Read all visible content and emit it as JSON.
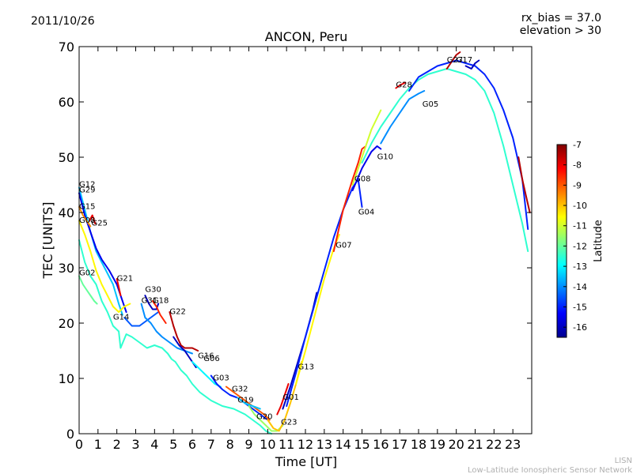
{
  "header": {
    "date": "2011/10/26",
    "title": "ANCON, Peru",
    "rx_bias": "rx_bias = 37.0",
    "elevation": "elevation > 30"
  },
  "footer": {
    "line1": "LISN",
    "line2": "Low-Latitude Ionospheric Sensor Network"
  },
  "colorbar": {
    "label": "Latitude",
    "min": -16.5,
    "max": -7,
    "ticks": [
      "-7",
      "-8",
      "-9",
      "-10",
      "-11",
      "-12",
      "-13",
      "-14",
      "-15",
      "-16"
    ],
    "tick_values": [
      -7,
      -8,
      -9,
      -10,
      -11,
      -12,
      -13,
      -14,
      -15,
      -16
    ],
    "colors": [
      "#00008f",
      "#0000ff",
      "#0080ff",
      "#00ffff",
      "#80ff80",
      "#ffff00",
      "#ff8000",
      "#ff0000",
      "#800000"
    ]
  },
  "chart_data": {
    "type": "line",
    "title": "ANCON, Peru",
    "xlabel": "Time [UT]",
    "ylabel": "TEC [UNITS]",
    "xlim": [
      0,
      24
    ],
    "ylim": [
      0,
      70
    ],
    "xticks": [
      "0",
      "1",
      "2",
      "3",
      "4",
      "5",
      "6",
      "7",
      "8",
      "9",
      "10",
      "11",
      "12",
      "13",
      "14",
      "15",
      "16",
      "17",
      "18",
      "19",
      "20",
      "21",
      "22",
      "23"
    ],
    "yticks": [
      "0",
      "10",
      "20",
      "30",
      "40",
      "50",
      "60",
      "70"
    ],
    "series": [
      {
        "name": "G12",
        "lat": -13.5,
        "x": [
          0.0,
          0.3,
          0.6,
          0.9,
          1.2,
          1.5,
          1.8,
          2.1,
          2.3
        ],
        "y": [
          44.5,
          40.5,
          36.5,
          33.0,
          31.0,
          29.0,
          27.0,
          23.5,
          21.5
        ]
      },
      {
        "name": "G29",
        "lat": -15.5,
        "x": [
          0.0,
          0.3,
          0.6,
          0.9,
          1.2,
          1.6,
          2.0,
          2.3,
          2.5
        ],
        "y": [
          43.5,
          39.5,
          36.5,
          33.5,
          31.5,
          29.5,
          27.0,
          24.0,
          22.0
        ]
      },
      {
        "name": "G15",
        "lat": -9.5,
        "x": [
          0.0,
          0.2,
          0.4,
          0.6
        ],
        "y": [
          41.0,
          39.5,
          38.5,
          37.5
        ]
      },
      {
        "name": "G25",
        "lat": -8.0,
        "x": [
          0.55,
          0.7,
          0.85
        ],
        "y": [
          38.5,
          39.5,
          38.0
        ]
      },
      {
        "name": "G08",
        "lat": -10.5,
        "x": [
          0.0,
          0.3,
          0.6,
          0.9,
          1.2,
          1.5,
          1.8,
          2.1,
          2.4,
          2.7
        ],
        "y": [
          38.5,
          36.0,
          33.0,
          29.5,
          27.0,
          25.0,
          23.0,
          22.0,
          23.0,
          23.5
        ]
      },
      {
        "name": "G02",
        "lat": -12.0,
        "x": [
          0.0,
          0.2,
          0.4,
          0.6,
          0.8,
          0.95
        ],
        "y": [
          28.5,
          27.0,
          26.0,
          25.0,
          24.0,
          23.5
        ]
      },
      {
        "name": "G02b",
        "lat": -12.5,
        "x": [
          0.0,
          0.3,
          0.6,
          0.9,
          1.2,
          1.5,
          1.8,
          2.1,
          2.2,
          2.5,
          2.8,
          3.2,
          3.6,
          4.0,
          4.4,
          4.7,
          4.9,
          5.1,
          5.4,
          5.7,
          6.0,
          6.4,
          7.0,
          7.6,
          8.2,
          8.8,
          9.2,
          9.6,
          9.9,
          10.2
        ],
        "y": [
          35.0,
          31.0,
          28.5,
          27.0,
          24.0,
          22.0,
          19.5,
          18.5,
          15.5,
          18.0,
          17.5,
          16.5,
          15.5,
          16.0,
          15.5,
          14.5,
          13.5,
          13.0,
          11.5,
          10.5,
          9.0,
          7.5,
          6.0,
          5.0,
          4.5,
          3.5,
          2.5,
          1.5,
          0.5,
          0.0
        ]
      },
      {
        "name": "G21",
        "lat": -8.0,
        "x": [
          2.0,
          2.1,
          2.2
        ],
        "y": [
          28.0,
          26.5,
          25.0
        ]
      },
      {
        "name": "G14",
        "lat": -14.5,
        "x": [
          2.4,
          2.8,
          3.2,
          3.6,
          4.0,
          4.2
        ],
        "y": [
          21.0,
          19.5,
          19.5,
          20.5,
          21.5,
          22.0
        ]
      },
      {
        "name": "G31",
        "lat": -14.0,
        "x": [
          3.3,
          3.5,
          3.8,
          4.1,
          4.4,
          4.8,
          5.2,
          5.6,
          6.0
        ],
        "y": [
          23.5,
          21.0,
          20.0,
          18.5,
          17.5,
          16.5,
          15.5,
          15.0,
          14.5
        ]
      },
      {
        "name": "G30",
        "lat": -16.0,
        "x": [
          3.5,
          3.7,
          3.9,
          4.1,
          4.2
        ],
        "y": [
          25.0,
          23.5,
          22.5,
          22.5,
          23.5
        ]
      },
      {
        "name": "G18",
        "lat": -8.5,
        "x": [
          3.9,
          4.1,
          4.3,
          4.6
        ],
        "y": [
          24.0,
          23.0,
          21.5,
          20.0
        ]
      },
      {
        "name": "G22",
        "lat": -7.5,
        "x": [
          4.8,
          5.0,
          5.2,
          5.4,
          5.6,
          5.8,
          6.0,
          6.3
        ],
        "y": [
          22.0,
          19.5,
          17.5,
          16.0,
          15.5,
          15.5,
          15.5,
          15.0
        ]
      },
      {
        "name": "G16",
        "lat": -16.0,
        "x": [
          5.0,
          5.3,
          5.6,
          5.9,
          6.2
        ],
        "y": [
          17.5,
          16.0,
          15.0,
          13.5,
          12.0
        ]
      },
      {
        "name": "G06",
        "lat": -13.0,
        "x": [
          6.0,
          6.3,
          6.6,
          6.9,
          7.2,
          7.5
        ],
        "y": [
          13.0,
          12.0,
          11.0,
          10.0,
          9.0,
          8.5
        ]
      },
      {
        "name": "G03",
        "lat": -15.0,
        "x": [
          7.0,
          7.3,
          7.6,
          8.0,
          8.4,
          8.8,
          9.2,
          9.6,
          10.0
        ],
        "y": [
          10.5,
          9.0,
          8.0,
          7.0,
          6.5,
          5.5,
          4.5,
          3.5,
          2.5
        ]
      },
      {
        "name": "G32",
        "lat": -9.0,
        "x": [
          7.8,
          8.2,
          8.6,
          9.0,
          9.4,
          9.8,
          10.1
        ],
        "y": [
          8.5,
          7.5,
          6.5,
          5.5,
          4.5,
          3.5,
          2.5
        ]
      },
      {
        "name": "G19",
        "lat": -13.5,
        "x": [
          8.4,
          8.8,
          9.2,
          9.6
        ],
        "y": [
          6.5,
          5.5,
          5.0,
          4.5
        ]
      },
      {
        "name": "G20",
        "lat": -11.5,
        "x": [
          9.0,
          9.3,
          9.6,
          9.9,
          10.2,
          10.5,
          10.8
        ],
        "y": [
          5.0,
          3.5,
          2.5,
          1.5,
          0.5,
          0.5,
          1.5
        ]
      },
      {
        "name": "G23",
        "lat": -10.0,
        "x": [
          10.0,
          10.3,
          10.6,
          10.9,
          11.2,
          11.5,
          11.8
        ],
        "y": [
          2.5,
          1.0,
          0.5,
          2.5,
          5.5,
          9.0,
          13.0
        ]
      },
      {
        "name": "G01",
        "lat": -8.0,
        "x": [
          10.5,
          10.7,
          10.9,
          11.1
        ],
        "y": [
          3.5,
          5.0,
          7.0,
          9.0
        ]
      },
      {
        "name": "G13",
        "lat": -16.0,
        "x": [
          10.8,
          11.2,
          11.6,
          12.0,
          12.4,
          12.6
        ],
        "y": [
          4.5,
          8.5,
          13.0,
          17.5,
          22.5,
          25.5
        ]
      },
      {
        "name": "G07",
        "lat": -10.5,
        "x": [
          11.5,
          12.0,
          12.5,
          13.0,
          13.5,
          13.8
        ],
        "y": [
          9.0,
          15.0,
          21.5,
          28.0,
          33.5,
          36.0
        ]
      },
      {
        "name": "G04",
        "lat": -15.0,
        "x": [
          11.0,
          11.5,
          12.0,
          12.5,
          13.0,
          13.5,
          14.0,
          14.5,
          14.8,
          15.0
        ],
        "y": [
          5.0,
          11.0,
          17.5,
          23.5,
          29.5,
          35.5,
          40.5,
          44.5,
          46.0,
          41.0
        ]
      },
      {
        "name": "G08b",
        "lat": -8.5,
        "x": [
          13.5,
          14.0,
          14.5,
          14.8,
          15.0,
          15.2
        ],
        "y": [
          33.0,
          40.5,
          46.0,
          49.0,
          51.5,
          52.0
        ]
      },
      {
        "name": "G10",
        "lat": -15.5,
        "x": [
          14.5,
          15.0,
          15.5,
          15.8,
          16.0
        ],
        "y": [
          44.0,
          48.0,
          51.0,
          52.0,
          51.5
        ]
      },
      {
        "name": "G11",
        "lat": -11.0,
        "x": [
          14.5,
          15.0,
          15.5,
          16.0
        ],
        "y": [
          45.0,
          50.0,
          55.0,
          58.5
        ]
      },
      {
        "name": "G26",
        "lat": -12.5,
        "x": [
          15.0,
          15.5,
          16.0,
          16.5,
          17.0,
          17.5,
          18.0,
          18.5,
          19.0,
          19.5,
          20.0,
          20.5,
          21.0,
          21.5,
          22.0,
          22.5,
          23.0,
          23.5,
          23.8
        ],
        "y": [
          49.0,
          52.5,
          55.5,
          58.0,
          60.5,
          62.5,
          64.0,
          65.0,
          65.5,
          66.0,
          65.5,
          65.0,
          64.0,
          62.0,
          58.0,
          52.0,
          45.0,
          38.0,
          33.0
        ]
      },
      {
        "name": "G05",
        "lat": -14.0,
        "x": [
          16.0,
          16.5,
          17.0,
          17.5,
          18.0,
          18.3
        ],
        "y": [
          52.5,
          55.5,
          58.0,
          60.5,
          61.5,
          62.0
        ]
      },
      {
        "name": "G28",
        "lat": -8.0,
        "x": [
          16.8,
          17.0,
          17.3
        ],
        "y": [
          62.5,
          63.0,
          63.5
        ]
      },
      {
        "name": "G27",
        "lat": -15.0,
        "x": [
          17.5,
          18.0,
          18.5,
          19.0,
          19.5,
          20.0,
          20.5,
          21.0,
          21.5,
          22.0,
          22.5,
          23.0,
          23.5,
          23.8
        ],
        "y": [
          62.0,
          64.5,
          65.5,
          66.5,
          67.0,
          67.5,
          67.0,
          66.5,
          65.0,
          62.5,
          58.5,
          53.5,
          46.0,
          37.0
        ]
      },
      {
        "name": "G17",
        "lat": -7.5,
        "x": [
          19.5,
          19.8,
          20.0,
          20.2
        ],
        "y": [
          66.0,
          67.5,
          68.5,
          69.0
        ]
      },
      {
        "name": "G09",
        "lat": -16.0,
        "x": [
          20.5,
          20.8,
          21.0,
          21.2
        ],
        "y": [
          66.5,
          66.0,
          67.0,
          67.5
        ]
      },
      {
        "name": "G22b",
        "lat": -7.5,
        "x": [
          23.3,
          23.5,
          23.7,
          23.9
        ],
        "y": [
          50.0,
          46.0,
          43.0,
          40.0
        ]
      }
    ],
    "labels": [
      {
        "text": "G12",
        "x": 0.0,
        "y": 44.5
      },
      {
        "text": "G29",
        "x": 0.0,
        "y": 43.5
      },
      {
        "text": "G15",
        "x": 0.0,
        "y": 40.5
      },
      {
        "text": "G08",
        "x": 0.0,
        "y": 38.0
      },
      {
        "text": "G25",
        "x": 0.65,
        "y": 37.5
      },
      {
        "text": "G02",
        "x": 0.0,
        "y": 28.5
      },
      {
        "text": "G21",
        "x": 2.0,
        "y": 27.5
      },
      {
        "text": "G14",
        "x": 1.8,
        "y": 20.5
      },
      {
        "text": "G30",
        "x": 3.5,
        "y": 25.5
      },
      {
        "text": "G31",
        "x": 3.3,
        "y": 23.5
      },
      {
        "text": "G18",
        "x": 3.9,
        "y": 23.5
      },
      {
        "text": "G22",
        "x": 4.8,
        "y": 21.5
      },
      {
        "text": "G16",
        "x": 6.3,
        "y": 13.5
      },
      {
        "text": "G06",
        "x": 6.6,
        "y": 13.0
      },
      {
        "text": "G03",
        "x": 7.1,
        "y": 9.5
      },
      {
        "text": "G32",
        "x": 8.1,
        "y": 7.5
      },
      {
        "text": "G19",
        "x": 8.4,
        "y": 5.5
      },
      {
        "text": "G20",
        "x": 9.4,
        "y": 2.5
      },
      {
        "text": "G23",
        "x": 10.7,
        "y": 1.5
      },
      {
        "text": "G01",
        "x": 10.8,
        "y": 6.0
      },
      {
        "text": "G13",
        "x": 11.6,
        "y": 11.5
      },
      {
        "text": "G07",
        "x": 13.6,
        "y": 33.5
      },
      {
        "text": "G04",
        "x": 14.8,
        "y": 39.5
      },
      {
        "text": "G08",
        "x": 14.6,
        "y": 45.5
      },
      {
        "text": "G10",
        "x": 15.8,
        "y": 49.5
      },
      {
        "text": "G05",
        "x": 18.2,
        "y": 59.0
      },
      {
        "text": "G28",
        "x": 16.8,
        "y": 62.5
      },
      {
        "text": "G27",
        "x": 19.5,
        "y": 67.0
      },
      {
        "text": "G17",
        "x": 20.0,
        "y": 67.0
      }
    ]
  }
}
